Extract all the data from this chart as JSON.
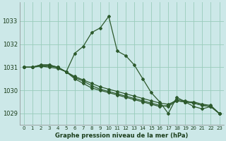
{
  "background_color": "#cce8e8",
  "grid_color": "#99ccbb",
  "line_color": "#2d5a2d",
  "xlabel": "Graphe pression niveau de la mer (hPa)",
  "xlim": [
    -0.5,
    23.5
  ],
  "ylim": [
    1028.5,
    1033.8
  ],
  "yticks": [
    1029,
    1030,
    1031,
    1032,
    1033
  ],
  "xticks": [
    0,
    1,
    2,
    3,
    4,
    5,
    6,
    7,
    8,
    9,
    10,
    11,
    12,
    13,
    14,
    15,
    16,
    17,
    18,
    19,
    20,
    21,
    22,
    23
  ],
  "xticklabels": [
    "0",
    "1",
    "2",
    "3",
    "4",
    "5",
    "6",
    "7",
    "8",
    "9",
    "10",
    "11",
    "12",
    "13",
    "14",
    "15",
    "16",
    "17",
    "18",
    "19",
    "20",
    "21",
    "22",
    "23"
  ],
  "series1": [
    1031.0,
    1031.0,
    1031.1,
    1031.1,
    1031.0,
    1030.8,
    1031.6,
    1031.9,
    1032.5,
    1032.7,
    1033.2,
    1031.7,
    1031.5,
    1031.1,
    1030.5,
    1029.9,
    1029.5,
    1029.0,
    1029.7,
    1029.5,
    1029.3,
    1029.2,
    1029.3,
    1029.0
  ],
  "series2": [
    1031.0,
    1031.0,
    1031.1,
    1031.1,
    1031.0,
    1030.8,
    1030.5,
    1030.3,
    1030.1,
    1030.0,
    1029.9,
    1029.8,
    1029.7,
    1029.6,
    1029.5,
    1029.4,
    1029.3,
    1029.35,
    1029.6,
    1029.55,
    1029.45,
    1029.35,
    1029.3,
    1029.0
  ],
  "series3": [
    1031.0,
    1031.0,
    1031.05,
    1031.0,
    1030.95,
    1030.8,
    1030.6,
    1030.45,
    1030.3,
    1030.15,
    1030.05,
    1029.95,
    1029.85,
    1029.75,
    1029.65,
    1029.55,
    1029.45,
    1029.4,
    1029.55,
    1029.5,
    1029.5,
    1029.4,
    1029.35,
    1029.0
  ],
  "series4": [
    1031.0,
    1031.0,
    1031.05,
    1031.05,
    1031.0,
    1030.8,
    1030.55,
    1030.4,
    1030.2,
    1030.05,
    1029.95,
    1029.85,
    1029.75,
    1029.65,
    1029.55,
    1029.45,
    1029.35,
    1029.3,
    1029.55,
    1029.5,
    1029.45,
    1029.35,
    1029.3,
    1029.0
  ]
}
